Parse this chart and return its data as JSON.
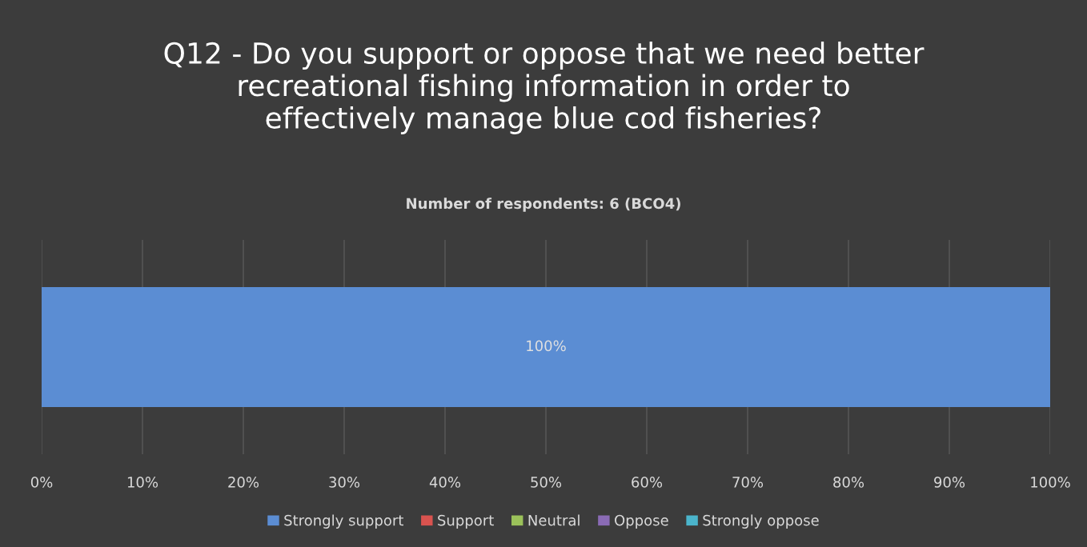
{
  "chart_data": {
    "type": "bar",
    "orientation": "horizontal",
    "stacked": true,
    "title": "Q12 - Do you support or oppose that we need better\nrecreational fishing information in order to\neffectively manage blue cod fisheries?",
    "subtitle": "Number of respondents: 6 (BCO4)",
    "categories": [
      null
    ],
    "series": [
      {
        "name": "Strongly support",
        "color": "#5b8dd3",
        "values": [
          100
        ],
        "value_labels": [
          "100%"
        ]
      },
      {
        "name": "Support",
        "color": "#d9534f",
        "values": [
          0
        ]
      },
      {
        "name": "Neutral",
        "color": "#9bc15a",
        "values": [
          0
        ]
      },
      {
        "name": "Oppose",
        "color": "#8a6bb5",
        "values": [
          0
        ]
      },
      {
        "name": "Strongly oppose",
        "color": "#4bb5cc",
        "values": [
          0
        ]
      }
    ],
    "xlim": [
      0,
      100
    ],
    "xticks": [
      {
        "value": 0,
        "label": "0%"
      },
      {
        "value": 10,
        "label": "10%"
      },
      {
        "value": 20,
        "label": "20%"
      },
      {
        "value": 30,
        "label": "30%"
      },
      {
        "value": 40,
        "label": "40%"
      },
      {
        "value": 50,
        "label": "50%"
      },
      {
        "value": 60,
        "label": "60%"
      },
      {
        "value": 70,
        "label": "70%"
      },
      {
        "value": 80,
        "label": "80%"
      },
      {
        "value": 90,
        "label": "90%"
      },
      {
        "value": 100,
        "label": "100%"
      }
    ],
    "grid": "x",
    "legend": "bottom",
    "tick_labels": "x"
  }
}
